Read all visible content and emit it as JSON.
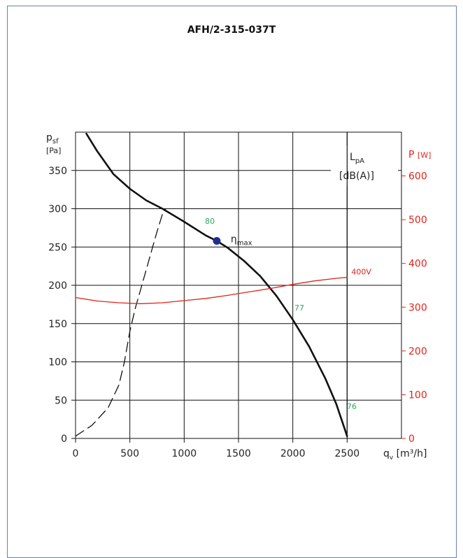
{
  "chart_data": {
    "type": "line",
    "title": "AFH/2-315-037T",
    "x_axis": {
      "label_main": "q",
      "label_sub": "v",
      "unit": "[m³/h]",
      "range": [
        0,
        3000
      ],
      "ticks": [
        0,
        500,
        1000,
        1500,
        2000,
        2500
      ]
    },
    "y_axis_left": {
      "label_main": "p",
      "label_sub": "sf",
      "unit": "[Pa]",
      "range": [
        0,
        400
      ],
      "ticks": [
        0,
        50,
        100,
        150,
        200,
        250,
        300,
        350
      ]
    },
    "y_axis_right": {
      "label": "P",
      "unit": "[W]",
      "range": [
        0,
        700
      ],
      "ticks": [
        0,
        100,
        200,
        300,
        400,
        500,
        600
      ]
    },
    "sound_box": {
      "label_main": "L",
      "label_sub": "pA",
      "unit": "[dB(A)]"
    },
    "grid": true,
    "series": [
      {
        "name": "",
        "axis": "left",
        "style": "solid",
        "color": "#111111",
        "x": [
          100,
          200,
          350,
          500,
          650,
          800,
          1000,
          1200,
          1300,
          1400,
          1550,
          1700,
          1850,
          2000,
          2150,
          2300,
          2400,
          2500
        ],
        "y": [
          398,
          375,
          345,
          326,
          311,
          300,
          283,
          265,
          258,
          249,
          232,
          212,
          186,
          155,
          120,
          78,
          45,
          3
        ]
      },
      {
        "name": "",
        "axis": "left",
        "style": "dashed",
        "color": "#111111",
        "x": [
          0,
          150,
          300,
          400,
          450,
          500,
          550,
          600,
          650,
          700,
          750,
          800,
          830
        ],
        "y": [
          3,
          17,
          40,
          70,
          100,
          140,
          170,
          195,
          220,
          245,
          270,
          293,
          300
        ]
      },
      {
        "name": "400V",
        "axis": "right",
        "style": "solid",
        "color": "#e2231a",
        "x": [
          0,
          200,
          400,
          600,
          800,
          1000,
          1200,
          1400,
          1600,
          1800,
          2000,
          2200,
          2400,
          2500
        ],
        "y": [
          322,
          314,
          310,
          308,
          310,
          315,
          320,
          327,
          335,
          343,
          352,
          360,
          366,
          368
        ]
      }
    ],
    "marker": {
      "label_main": "η",
      "label_sub": "max",
      "x": 1300,
      "y": 258,
      "color": "#1f2f8f"
    },
    "annotations": [
      {
        "text": "80",
        "color": "#2ea85a"
      },
      {
        "text": "77",
        "color": "#2ea85a"
      },
      {
        "text": "76",
        "color": "#2ea85a"
      }
    ]
  }
}
